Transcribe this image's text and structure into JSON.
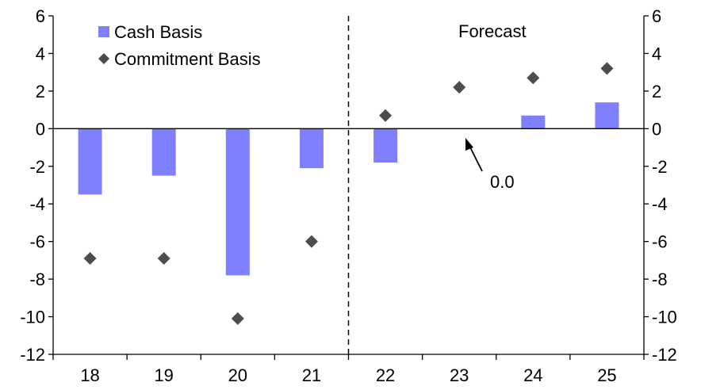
{
  "chart_data": {
    "type": "bar",
    "categories": [
      "18",
      "19",
      "20",
      "21",
      "22",
      "23",
      "24",
      "25"
    ],
    "series": [
      {
        "name": "Cash Basis",
        "kind": "bar",
        "values": [
          -3.5,
          -2.5,
          -7.8,
          -2.1,
          -1.8,
          0.0,
          0.7,
          1.4
        ]
      },
      {
        "name": "Commitment Basis",
        "kind": "scatter",
        "marker": "diamond",
        "values": [
          -6.9,
          -6.9,
          -10.1,
          -6.0,
          0.7,
          2.2,
          2.7,
          3.2
        ]
      }
    ],
    "ylim": [
      -12,
      6
    ],
    "yticks": [
      6,
      4,
      2,
      0,
      -2,
      -4,
      -6,
      -8,
      -10,
      -12
    ],
    "secondary_ylim": [
      -12,
      6
    ],
    "forecast_divider_after": "21",
    "annotations": [
      {
        "text": "Forecast"
      },
      {
        "text": "0.0",
        "points_to": {
          "category": "23",
          "value": 0.0
        }
      }
    ],
    "legend": {
      "position": "top-left"
    },
    "colors": {
      "bar": "#8080ff",
      "diamond": "#4d4d4d",
      "axis": "#000000"
    }
  }
}
